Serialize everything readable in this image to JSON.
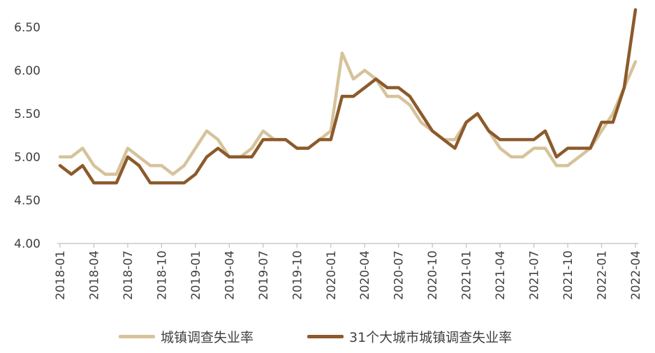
{
  "chart_data": {
    "type": "line",
    "x": [
      "2018-01",
      "2018-02",
      "2018-03",
      "2018-04",
      "2018-05",
      "2018-06",
      "2018-07",
      "2018-08",
      "2018-09",
      "2018-10",
      "2018-11",
      "2018-12",
      "2019-01",
      "2019-02",
      "2019-03",
      "2019-04",
      "2019-05",
      "2019-06",
      "2019-07",
      "2019-08",
      "2019-09",
      "2019-10",
      "2019-11",
      "2019-12",
      "2020-01",
      "2020-02",
      "2020-03",
      "2020-04",
      "2020-05",
      "2020-06",
      "2020-07",
      "2020-08",
      "2020-09",
      "2020-10",
      "2020-11",
      "2020-12",
      "2021-01",
      "2021-02",
      "2021-03",
      "2021-04",
      "2021-05",
      "2021-06",
      "2021-07",
      "2021-08",
      "2021-09",
      "2021-10",
      "2021-11",
      "2021-12",
      "2022-01",
      "2022-02",
      "2022-03",
      "2022-04"
    ],
    "x_tick_labels": [
      "2018-01",
      "2018-04",
      "2018-07",
      "2018-10",
      "2019-01",
      "2019-04",
      "2019-07",
      "2019-10",
      "2020-01",
      "2020-04",
      "2020-07",
      "2020-10",
      "2021-01",
      "2021-04",
      "2021-07",
      "2021-10",
      "2022-01",
      "2022-04"
    ],
    "y_tick_labels": [
      "4.00",
      "4.50",
      "5.00",
      "5.50",
      "6.00",
      "6.50"
    ],
    "ylim": [
      4.0,
      6.7
    ],
    "title": "",
    "xlabel": "",
    "ylabel": "",
    "grid": false,
    "legend_position": "bottom",
    "series": [
      {
        "name": "城镇调查失业率",
        "color": "#d6c39b",
        "values": [
          5.0,
          5.0,
          5.1,
          4.9,
          4.8,
          4.8,
          5.1,
          5.0,
          4.9,
          4.9,
          4.8,
          4.9,
          5.1,
          5.3,
          5.2,
          5.0,
          5.0,
          5.1,
          5.3,
          5.2,
          5.2,
          5.1,
          5.1,
          5.2,
          5.3,
          6.2,
          5.9,
          6.0,
          5.9,
          5.7,
          5.7,
          5.6,
          5.4,
          5.3,
          5.2,
          5.2,
          5.4,
          5.5,
          5.3,
          5.1,
          5.0,
          5.0,
          5.1,
          5.1,
          4.9,
          4.9,
          5.0,
          5.1,
          5.3,
          5.5,
          5.8,
          6.1
        ]
      },
      {
        "name": "31个大城市城镇调查失业率",
        "color": "#8c5a2b",
        "values": [
          4.9,
          4.8,
          4.9,
          4.7,
          4.7,
          4.7,
          5.0,
          4.9,
          4.7,
          4.7,
          4.7,
          4.7,
          4.8,
          5.0,
          5.1,
          5.0,
          5.0,
          5.0,
          5.2,
          5.2,
          5.2,
          5.1,
          5.1,
          5.2,
          5.2,
          5.7,
          5.7,
          5.8,
          5.9,
          5.8,
          5.8,
          5.7,
          5.5,
          5.3,
          5.2,
          5.1,
          5.4,
          5.5,
          5.3,
          5.2,
          5.2,
          5.2,
          5.2,
          5.3,
          5.0,
          5.1,
          5.1,
          5.1,
          5.4,
          5.4,
          5.8,
          6.7
        ]
      }
    ]
  }
}
